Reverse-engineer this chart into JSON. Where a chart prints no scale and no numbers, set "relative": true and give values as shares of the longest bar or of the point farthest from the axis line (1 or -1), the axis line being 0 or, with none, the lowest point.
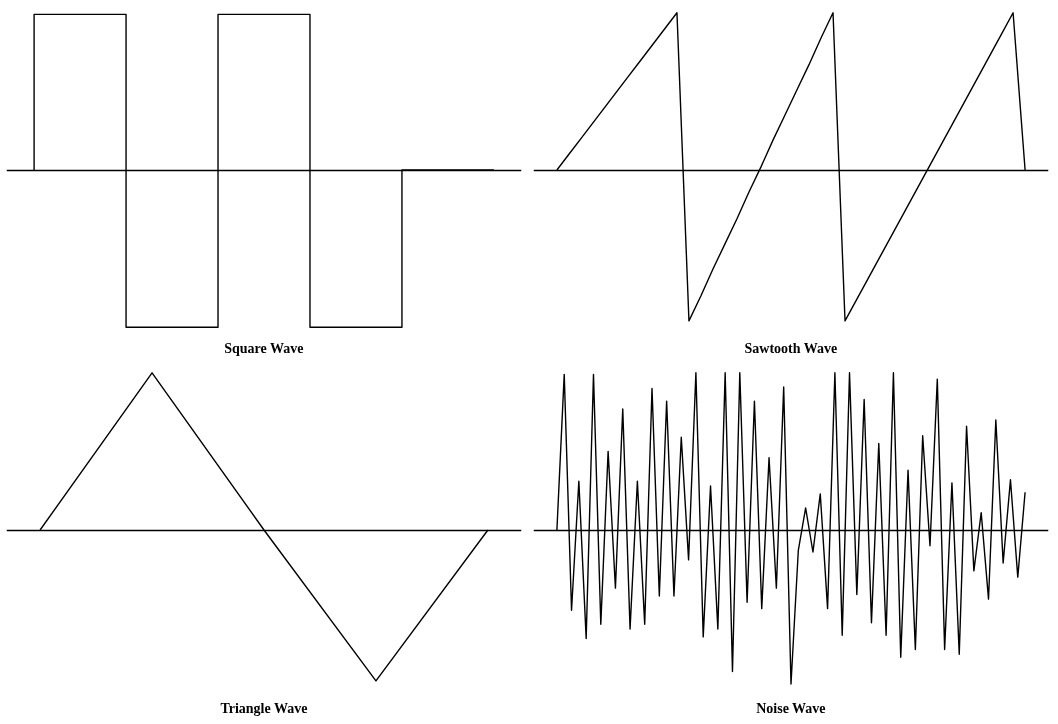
{
  "chart_data": [
    {
      "type": "step",
      "title": "Square Wave",
      "relative": true,
      "line_style": "solid",
      "categories": [
        null,
        null,
        null,
        null,
        null,
        null
      ],
      "series": [
        {
          "color": "#000000",
          "values": [
            0,
            0.99,
            -1,
            0.99,
            -1,
            0
          ]
        }
      ]
    },
    {
      "type": "line",
      "title": "Sawtooth Wave",
      "relative": true,
      "line_style": "solid",
      "categories": [
        null,
        null,
        null,
        null,
        null,
        null,
        null,
        null,
        null,
        null,
        null,
        null,
        null,
        null,
        null,
        null,
        null,
        null,
        null,
        null,
        null,
        null,
        null,
        null,
        null,
        null,
        null,
        null,
        null,
        null,
        null,
        null,
        null,
        null,
        null,
        null,
        null,
        null,
        null,
        null
      ],
      "series": [
        {
          "color": "#000000",
          "values": [
            0,
            0.1,
            0.2,
            0.3,
            0.4,
            0.5,
            0.6,
            0.7,
            0.8,
            0.9,
            1,
            -0.96,
            -0.8,
            -0.63,
            -0.47,
            -0.31,
            -0.14,
            0.02,
            0.19,
            0.35,
            0.51,
            0.67,
            0.84,
            1,
            -0.96,
            -0.82,
            -0.68,
            -0.54,
            -0.4,
            -0.26,
            -0.12,
            0.02,
            0.16,
            0.3,
            0.44,
            0.58,
            0.72,
            0.86,
            1,
            0
          ]
        }
      ]
    },
    {
      "type": "line",
      "title": "Triangle Wave",
      "relative": true,
      "line_style": "solid",
      "categories": [
        null,
        null,
        null,
        null,
        null
      ],
      "series": [
        {
          "color": "#000000",
          "values": [
            0,
            1,
            0,
            -0.96,
            0
          ]
        }
      ]
    },
    {
      "type": "line",
      "title": "Noise Wave",
      "relative": true,
      "line_style": "solid",
      "categories": [
        null,
        null,
        null,
        null,
        null,
        null,
        null,
        null,
        null,
        null,
        null,
        null,
        null,
        null,
        null,
        null,
        null,
        null,
        null,
        null,
        null,
        null,
        null,
        null,
        null,
        null,
        null,
        null,
        null,
        null,
        null,
        null,
        null,
        null,
        null,
        null,
        null,
        null,
        null,
        null,
        null,
        null,
        null,
        null,
        null,
        null,
        null,
        null,
        null,
        null,
        null,
        null,
        null,
        null,
        null,
        null,
        null,
        null,
        null,
        null,
        null,
        null,
        null,
        null,
        null
      ],
      "series": [
        {
          "color": "#000000",
          "values": [
            0,
            0.99,
            -0.51,
            0.31,
            -0.69,
            0.99,
            -0.6,
            0.5,
            -0.37,
            0.77,
            -0.63,
            0.31,
            -0.6,
            0.9,
            -0.42,
            0.82,
            -0.42,
            0.59,
            -0.19,
            1,
            -0.68,
            0.28,
            -0.63,
            1,
            -0.9,
            1,
            -0.46,
            0.82,
            -0.5,
            0.46,
            -0.37,
            0.91,
            -0.98,
            -0.13,
            0.14,
            -0.14,
            0.23,
            -0.5,
            1,
            -0.67,
            1,
            -0.41,
            0.83,
            -0.59,
            0.55,
            -0.67,
            1,
            -0.81,
            0.38,
            -0.76,
            0.6,
            -0.1,
            0.96,
            -0.76,
            0.3,
            -0.79,
            0.66,
            -0.26,
            0.11,
            -0.44,
            0.7,
            -0.21,
            0.32,
            -0.3,
            0.24
          ]
        }
      ]
    }
  ]
}
